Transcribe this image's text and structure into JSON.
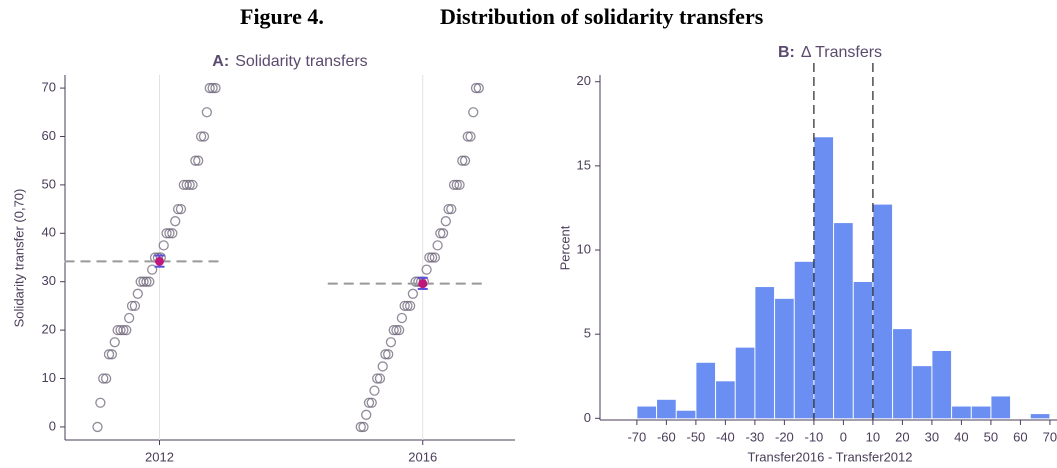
{
  "figure": {
    "label": "Figure 4.",
    "title": "Distribution of solidarity transfers"
  },
  "chart_data": [
    {
      "type": "strip",
      "label": "A:",
      "title": "Solidarity transfers",
      "y_label": "Solidarity transfer (0,70)",
      "categories": [
        "2012",
        "2016"
      ],
      "values": [
        [
          0,
          5,
          10,
          10,
          15,
          15,
          17.5,
          20,
          20,
          20,
          20,
          22.5,
          25,
          25,
          27.5,
          30,
          30,
          30,
          30,
          32.5,
          35,
          35,
          35,
          37.5,
          40,
          40,
          40,
          42.5,
          45,
          45,
          50,
          50,
          50,
          50,
          55,
          55,
          60,
          60,
          65,
          70,
          70,
          70
        ],
        [
          0,
          0,
          2.5,
          5,
          5,
          7.5,
          10,
          10,
          12.5,
          15,
          15,
          17.5,
          20,
          20,
          20,
          22.5,
          25,
          25,
          25,
          27.5,
          30,
          30,
          30,
          30,
          32.5,
          35,
          35,
          35,
          37.5,
          40,
          40,
          42.5,
          45,
          45,
          50,
          50,
          50,
          55,
          55,
          60,
          60,
          65,
          70,
          70
        ]
      ],
      "means": [
        34.2,
        29.6
      ],
      "ci_low": [
        33.1,
        28.5
      ],
      "ci_high": [
        35.4,
        30.8
      ],
      "point_color": "#6e6478",
      "mean_color": "#c0187a",
      "ci_color": "#5a4fd8",
      "mean_line_color": "#999999",
      "ylim": [
        -2.7,
        72.7
      ],
      "yticks": [
        0,
        10,
        20,
        30,
        40,
        50,
        60,
        70
      ]
    },
    {
      "type": "histogram",
      "label": "B:",
      "title": "Δ Transfers",
      "x_label": "Transfer2016 - Transfer2012",
      "y_label": "Percent",
      "bins": [
        -70,
        -63.333,
        -56.667,
        -50,
        -43.333,
        -36.667,
        -30,
        -23.333,
        -16.667,
        -10,
        -3.333,
        3.333,
        10,
        16.667,
        23.333,
        30,
        36.667,
        43.333,
        50,
        56.667,
        63.333,
        70
      ],
      "values": [
        0.7,
        1.1,
        0.45,
        3.3,
        2.2,
        4.2,
        7.8,
        7.1,
        9.3,
        16.7,
        11.6,
        8.1,
        12.7,
        5.3,
        3.1,
        4.0,
        0.7,
        0.7,
        1.3,
        0,
        0.25
      ],
      "color": "#6a8ef2",
      "vlines": [
        -10,
        10
      ],
      "xlim": [
        -82.5,
        72.4
      ],
      "xticks": [
        -70,
        -60,
        -50,
        -40,
        -30,
        -20,
        -10,
        0,
        10,
        20,
        30,
        40,
        50,
        60,
        70
      ],
      "ylim": [
        -0.1,
        20.4
      ],
      "yticks": [
        0,
        5,
        10,
        15,
        20
      ]
    }
  ]
}
